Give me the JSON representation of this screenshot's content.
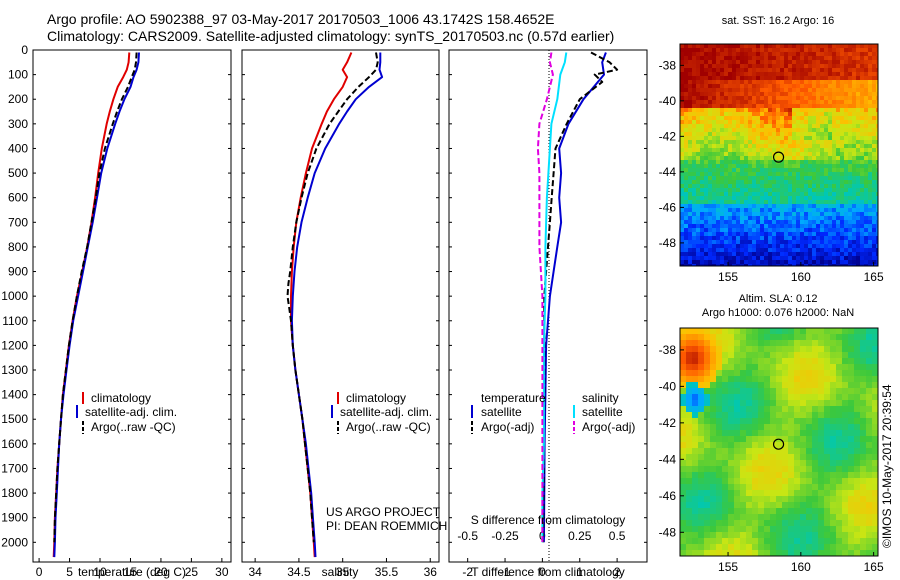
{
  "header": {
    "title_line1": "Argo profile: AO 5902388_97 03-May-2017 20170503_1006 43.1742S 158.4652E",
    "title_line2": "Climatology: CARS2009. Satellite-adjusted climatology: synTS_20170503.nc (0.57d earlier)"
  },
  "colors": {
    "climatology": "#e00000",
    "satellite": "#0000d0",
    "argo": "#000000",
    "temperature_sat": "#00e0ff",
    "salinity_adj": "#e000e0"
  },
  "depth_axis": {
    "ylim": [
      0,
      2080
    ],
    "ticks": [
      0,
      100,
      200,
      300,
      400,
      500,
      600,
      700,
      800,
      900,
      1000,
      1100,
      1200,
      1300,
      1400,
      1500,
      1600,
      1700,
      1800,
      1900,
      2000
    ],
    "tick_labels": [
      "0",
      "100",
      "200",
      "300",
      "400",
      "500",
      "600",
      "700",
      "800",
      "900",
      "1000",
      "1100",
      "1200",
      "1300",
      "1400",
      "1500",
      "1600",
      "1700",
      "1800",
      "1900",
      "2000"
    ]
  },
  "chart_data": [
    {
      "id": "temperature",
      "type": "line",
      "xlabel": "temperature (deg C)",
      "xlim": [
        -1,
        31.5
      ],
      "xticks": [
        0,
        5,
        10,
        15,
        20,
        25,
        30
      ],
      "xtick_labels": [
        "0",
        "5",
        "10",
        "15",
        "20",
        "25",
        "30"
      ],
      "legend": [
        "climatology",
        "satellite-adj. clim.",
        "Argo(..raw -QC)"
      ],
      "legend_position": "bottom-center",
      "series": [
        {
          "name": "climatology",
          "style": "solid",
          "depth": [
            10,
            50,
            80,
            110,
            150,
            200,
            250,
            300,
            400,
            500,
            600,
            700,
            800,
            900,
            1000,
            1100,
            1200,
            1300,
            1400,
            1500,
            1600,
            1700,
            1800,
            1900,
            2000,
            2060
          ],
          "values": [
            14.8,
            14.7,
            14.4,
            13.8,
            12.9,
            12.2,
            11.6,
            11.1,
            10.3,
            9.7,
            9.2,
            8.6,
            7.9,
            7.1,
            6.2,
            5.5,
            4.9,
            4.4,
            3.9,
            3.6,
            3.3,
            3.0,
            2.8,
            2.6,
            2.5,
            2.4
          ]
        },
        {
          "name": "satellite-adj. clim.",
          "style": "solid",
          "depth": [
            10,
            50,
            80,
            110,
            150,
            200,
            250,
            300,
            400,
            500,
            600,
            700,
            800,
            900,
            1000,
            1100,
            1200,
            1300,
            1400,
            1500,
            1600,
            1700,
            1800,
            1900,
            2000,
            2060
          ],
          "values": [
            16.4,
            16.3,
            16.0,
            15.5,
            15.0,
            14.0,
            13.2,
            12.5,
            11.2,
            10.2,
            9.5,
            8.8,
            8.0,
            7.2,
            6.4,
            5.6,
            5.0,
            4.5,
            4.0,
            3.6,
            3.3,
            3.1,
            2.9,
            2.7,
            2.6,
            2.5
          ]
        },
        {
          "name": "Argo(..raw -QC)",
          "style": "dashed",
          "depth": [
            10,
            50,
            80,
            110,
            150,
            200,
            250,
            300,
            400,
            500,
            600,
            700,
            800,
            900,
            1000,
            1100,
            1200,
            1300,
            1400,
            1500,
            1600,
            1700,
            1800,
            1900,
            2000
          ],
          "values": [
            16.0,
            15.9,
            15.7,
            15.2,
            14.6,
            13.6,
            12.8,
            12.1,
            10.8,
            9.9,
            9.3,
            8.6,
            7.9,
            7.0,
            6.2,
            5.5,
            4.9,
            4.4,
            3.9,
            3.6,
            3.3,
            3.0,
            2.8,
            2.6,
            2.5
          ]
        }
      ]
    },
    {
      "id": "salinity",
      "type": "line",
      "xlabel": "salinity",
      "xlim": [
        33.85,
        36.1
      ],
      "xticks": [
        34,
        34.5,
        35,
        35.5,
        36
      ],
      "xtick_labels": [
        "34",
        "34.5",
        "35",
        "35.5",
        "36"
      ],
      "legend": [
        "climatology",
        "satellite-adj. clim.",
        "Argo(..raw -QC)"
      ],
      "legend_position": "bottom-center",
      "annotation": [
        "US ARGO PROJECT",
        "PI: DEAN ROEMMICH"
      ],
      "series": [
        {
          "name": "climatology",
          "style": "solid",
          "depth": [
            10,
            50,
            80,
            110,
            150,
            200,
            250,
            300,
            400,
            500,
            600,
            700,
            800,
            900,
            1000,
            1100,
            1200,
            1300,
            1400,
            1500,
            1600,
            1700,
            1800,
            1900,
            2000,
            2060
          ],
          "values": [
            35.1,
            35.05,
            35.0,
            35.05,
            35.0,
            34.9,
            34.82,
            34.76,
            34.65,
            34.58,
            34.52,
            34.47,
            34.44,
            34.42,
            34.41,
            34.41,
            34.43,
            34.46,
            34.5,
            34.54,
            34.57,
            34.6,
            34.63,
            34.65,
            34.67,
            34.68
          ]
        },
        {
          "name": "satellite-adj. clim.",
          "style": "solid",
          "depth": [
            10,
            50,
            80,
            110,
            150,
            200,
            250,
            300,
            400,
            500,
            600,
            700,
            800,
            900,
            1000,
            1100,
            1200,
            1300,
            1400,
            1500,
            1600,
            1700,
            1800,
            1900,
            2000,
            2060
          ],
          "values": [
            35.43,
            35.43,
            35.42,
            35.45,
            35.3,
            35.15,
            35.05,
            34.96,
            34.8,
            34.68,
            34.6,
            34.53,
            34.48,
            34.45,
            34.43,
            34.42,
            34.43,
            34.46,
            34.5,
            34.54,
            34.58,
            34.61,
            34.64,
            34.66,
            34.68,
            34.69
          ]
        },
        {
          "name": "Argo(..raw -QC)",
          "style": "dashed",
          "depth": [
            10,
            50,
            80,
            110,
            150,
            200,
            250,
            300,
            400,
            500,
            600,
            700,
            800,
            900,
            950,
            1000,
            1050,
            1100,
            1200,
            1300,
            1400,
            1500,
            1600,
            1700,
            1800,
            1900,
            2000
          ],
          "values": [
            35.38,
            35.4,
            35.38,
            35.3,
            35.18,
            35.05,
            34.95,
            34.85,
            34.7,
            34.6,
            34.53,
            34.47,
            34.43,
            34.4,
            34.38,
            34.37,
            34.39,
            34.41,
            34.43,
            34.46,
            34.5,
            34.54,
            34.57,
            34.6,
            34.63,
            34.65,
            34.67
          ]
        }
      ]
    },
    {
      "id": "differences",
      "type": "line",
      "xlabel": "T difference from climatology",
      "xlabel_top": "S difference from climatology",
      "xlim": [
        -2.5,
        2.8
      ],
      "xticks": [
        -2,
        -1,
        0,
        1,
        2
      ],
      "xtick_labels": [
        "-2",
        "-1",
        "0",
        "1",
        "2"
      ],
      "xticks_top": [
        -0.5,
        -0.25,
        0,
        0.25,
        0.5
      ],
      "xtick_labels_top": [
        "-0.5",
        "-0.25",
        "0",
        "0.25",
        "0.5"
      ],
      "legend_temperature": {
        "heading": "temperature",
        "items": [
          "satellite",
          "Argo(-adj)"
        ]
      },
      "legend_salinity": {
        "heading": "salinity",
        "items": [
          "satellite",
          "Argo(-adj)"
        ]
      },
      "series": [
        {
          "name": "temperature satellite",
          "style": "solid",
          "depth": [
            10,
            50,
            100,
            200,
            300,
            400,
            500,
            600,
            700,
            800,
            900,
            1000,
            1200,
            1400,
            1600,
            1800,
            2000
          ],
          "values": [
            1.7,
            1.6,
            1.65,
            1.1,
            0.7,
            0.45,
            0.5,
            0.45,
            0.5,
            0.4,
            0.3,
            0.2,
            0.1,
            0.08,
            0.06,
            0.05,
            0.04
          ]
        },
        {
          "name": "temperature Argo(-adj)",
          "style": "dashed",
          "depth": [
            10,
            50,
            80,
            100,
            130,
            200,
            300,
            400,
            500,
            600,
            700,
            800,
            900,
            1000,
            1200,
            1400,
            1600,
            1800,
            2000
          ],
          "values": [
            1.3,
            1.8,
            2.0,
            1.4,
            1.6,
            1.0,
            0.65,
            0.35,
            0.3,
            0.25,
            0.2,
            0.15,
            0.1,
            0.05,
            0.05,
            0.05,
            0.04,
            0.03,
            0.02
          ]
        },
        {
          "name": "salinity satellite",
          "style": "solid",
          "depth": [
            10,
            50,
            100,
            200,
            300,
            400,
            500,
            600,
            800,
            1000,
            1200,
            1400,
            1600,
            1800,
            2000
          ],
          "values": [
            0.16,
            0.15,
            0.12,
            0.1,
            0.06,
            0.05,
            0.04,
            0.03,
            0.02,
            0.02,
            0.01,
            0.01,
            0.01,
            0.0,
            0.0
          ]
        },
        {
          "name": "salinity Argo(-adj)",
          "style": "dashed",
          "depth": [
            10,
            50,
            100,
            200,
            300,
            400,
            500,
            600,
            700,
            800,
            900,
            1000,
            1200,
            1400,
            1600,
            1800,
            2000
          ],
          "values": [
            0.06,
            0.05,
            0.07,
            0.03,
            -0.02,
            -0.03,
            -0.02,
            -0.02,
            -0.02,
            -0.02,
            -0.01,
            0.0,
            0.0,
            0.0,
            0.0,
            0.0,
            0.0
          ]
        }
      ]
    },
    {
      "id": "sst_map",
      "type": "heatmap",
      "title": "sat. SST: 16.2  Argo: 16",
      "xlim": [
        151.7,
        165.3
      ],
      "ylim": [
        -49.3,
        -36.8
      ],
      "xticks": [
        155,
        160,
        165
      ],
      "xtick_labels": [
        "155",
        "160",
        "165"
      ],
      "yticks": [
        -38,
        -40,
        -42,
        -44,
        -46,
        -48
      ],
      "ytick_labels": [
        "-38",
        "-40",
        "-42",
        "-44",
        "-46",
        "-48"
      ],
      "marker": {
        "lon": 158.47,
        "lat": -43.17
      }
    },
    {
      "id": "sla_map",
      "type": "heatmap",
      "title_line1": "Altim. SLA: 0.12",
      "title_line2": "Argo h1000: 0.076 h2000: NaN",
      "xlim": [
        151.7,
        165.3
      ],
      "ylim": [
        -49.3,
        -36.8
      ],
      "xticks": [
        155,
        160,
        165
      ],
      "xtick_labels": [
        "155",
        "160",
        "165"
      ],
      "yticks": [
        -38,
        -40,
        -42,
        -44,
        -46,
        -48
      ],
      "ytick_labels": [
        "-38",
        "-40",
        "-42",
        "-44",
        "-46",
        "-48"
      ],
      "marker": {
        "lon": 158.47,
        "lat": -43.17
      }
    }
  ],
  "footer": {
    "side_stamp": "©IMOS 10-May-2017 20:39:54"
  }
}
